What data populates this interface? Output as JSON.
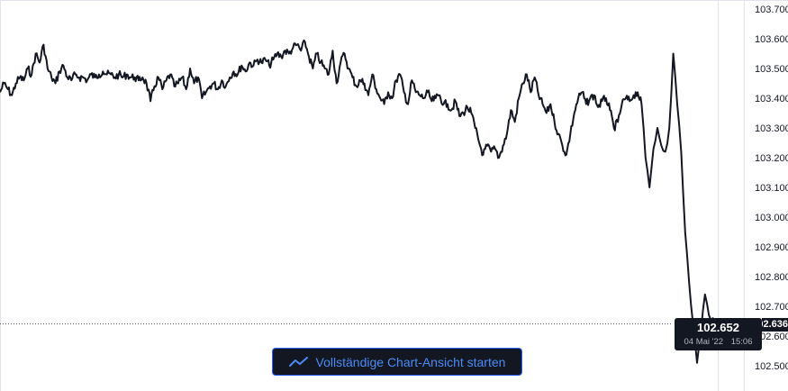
{
  "chart_data": {
    "type": "line",
    "title": "",
    "xlabel": "",
    "ylabel": "",
    "ylim": [
      102.45,
      103.73
    ],
    "grid": false,
    "y_ticks": [
      "103.700",
      "103.600",
      "103.500",
      "103.400",
      "103.300",
      "103.200",
      "103.100",
      "103.000",
      "102.900",
      "102.800",
      "102.700",
      "102.600",
      "102.500"
    ],
    "y_tick_values": [
      103.7,
      103.6,
      103.5,
      103.4,
      103.3,
      103.2,
      103.1,
      103.0,
      102.9,
      102.8,
      102.7,
      102.6,
      102.5
    ],
    "series": [
      {
        "color": "#131722",
        "values": [
          103.42,
          103.45,
          103.43,
          103.41,
          103.45,
          103.47,
          103.46,
          103.5,
          103.48,
          103.55,
          103.52,
          103.58,
          103.5,
          103.47,
          103.45,
          103.49,
          103.51,
          103.47,
          103.46,
          103.48,
          103.47,
          103.47,
          103.46,
          103.48,
          103.47,
          103.48,
          103.49,
          103.48,
          103.48,
          103.47,
          103.48,
          103.47,
          103.48,
          103.47,
          103.47,
          103.46,
          103.47,
          103.45,
          103.39,
          103.44,
          103.47,
          103.43,
          103.46,
          103.48,
          103.44,
          103.45,
          103.47,
          103.43,
          103.5,
          103.45,
          103.47,
          103.4,
          103.42,
          103.44,
          103.45,
          103.43,
          103.46,
          103.44,
          103.47,
          103.49,
          103.48,
          103.51,
          103.49,
          103.52,
          103.51,
          103.53,
          103.52,
          103.53,
          103.51,
          103.53,
          103.55,
          103.54,
          103.56,
          103.55,
          103.57,
          103.58,
          103.56,
          103.59,
          103.54,
          103.5,
          103.55,
          103.52,
          103.5,
          103.48,
          103.56,
          103.45,
          103.52,
          103.55,
          103.5,
          103.47,
          103.44,
          103.46,
          103.45,
          103.41,
          103.48,
          103.43,
          103.4,
          103.38,
          103.42,
          103.4,
          103.46,
          103.48,
          103.42,
          103.38,
          103.46,
          103.42,
          103.41,
          103.4,
          103.42,
          103.39,
          103.4,
          103.41,
          103.38,
          103.38,
          103.36,
          103.39,
          103.34,
          103.35,
          103.37,
          103.35,
          103.3,
          103.25,
          103.21,
          103.24,
          103.22,
          103.23,
          103.2,
          103.24,
          103.28,
          103.36,
          103.32,
          103.4,
          103.45,
          103.48,
          103.42,
          103.47,
          103.41,
          103.38,
          103.35,
          103.38,
          103.32,
          103.28,
          103.24,
          103.21,
          103.28,
          103.35,
          103.4,
          103.42,
          103.38,
          103.4,
          103.41,
          103.37,
          103.39,
          103.4,
          103.36,
          103.3,
          103.32,
          103.38,
          103.4,
          103.39,
          103.41,
          103.42,
          103.38,
          103.2,
          103.1,
          103.23,
          103.3,
          103.24,
          103.22,
          103.3,
          103.55,
          103.38,
          103.22,
          102.95,
          102.78,
          102.64,
          102.51,
          102.62,
          102.74,
          102.67,
          102.66,
          102.65
        ]
      }
    ],
    "last_value": 102.652,
    "last_value_label": "102.652",
    "last_date": "04 Mai '22",
    "last_time": "15:06",
    "axis_price_tag": "102.636"
  },
  "cta": {
    "label": "Vollständige Chart-Ansicht starten",
    "icon": "line-chart-icon"
  },
  "colors": {
    "line": "#131722",
    "axis_text": "#131722",
    "button_background": "#131722",
    "button_border": "#2962ff",
    "button_text": "#4c8bf5",
    "tooltip_background": "#131722"
  }
}
